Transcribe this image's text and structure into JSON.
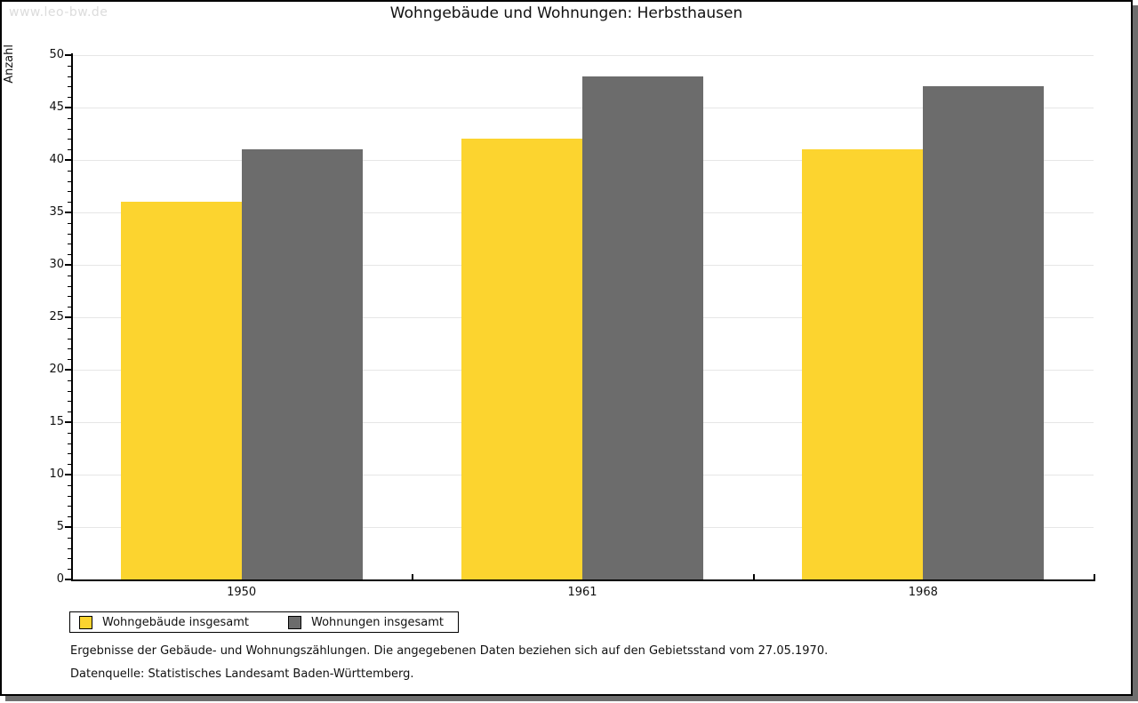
{
  "watermark": "www.leo-bw.de",
  "header": {
    "title": "Wohngebäude und Wohnungen: Herbsthausen"
  },
  "chart_data": {
    "type": "bar",
    "title": "Wohngebäude und Wohnungen: Herbsthausen",
    "xlabel": "",
    "ylabel": "Anzahl",
    "categories": [
      "1950",
      "1961",
      "1968"
    ],
    "series": [
      {
        "name": "Wohngebäude insgesamt",
        "color": "#fcd42f",
        "values": [
          36,
          42,
          41
        ]
      },
      {
        "name": "Wohnungen insgesamt",
        "color": "#6c6c6c",
        "values": [
          41,
          48,
          47
        ]
      }
    ],
    "ylim": [
      0,
      50
    ],
    "ytick_step": 5,
    "yminor_step": 1,
    "grid": true,
    "legend_position": "bottom-left"
  },
  "footnotes": [
    "Ergebnisse der Gebäude- und Wohnungszählungen. Die angegebenen Daten beziehen sich auf den Gebietsstand vom 27.05.1970.",
    "Datenquelle: Statistisches Landesamt Baden-Württemberg."
  ],
  "colors": {
    "grid": "#e6e6e6",
    "axis": "#000000",
    "watermark": "#dcdcdc",
    "shadow": "#6e6e6e"
  }
}
